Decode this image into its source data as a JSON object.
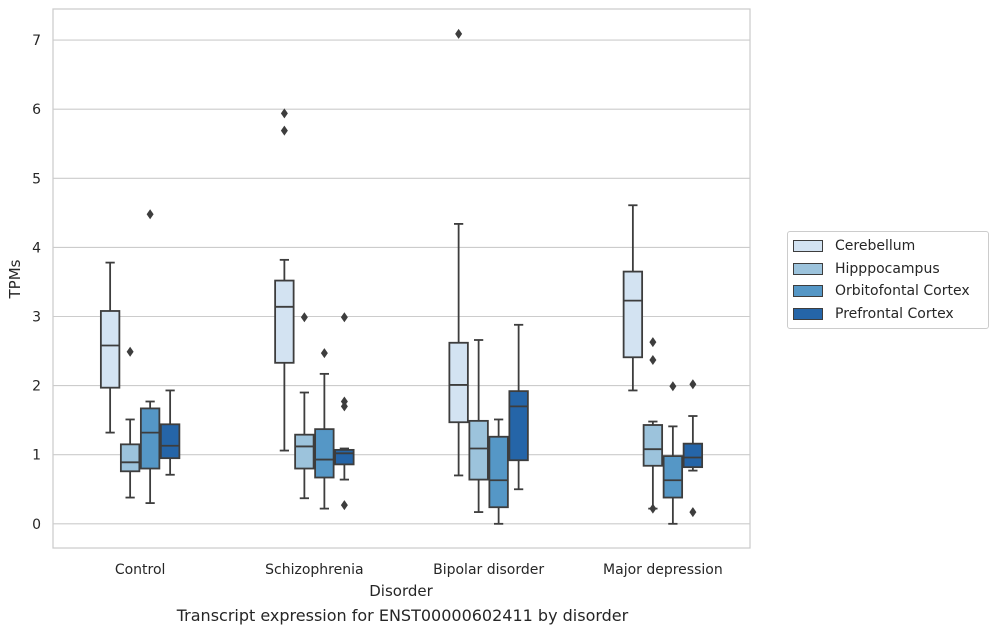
{
  "chart_data": {
    "type": "box",
    "title": "",
    "caption": "Transcript expression for ENST00000602411 by disorder",
    "xlabel": "Disorder",
    "ylabel": "TPMs",
    "ylim": [
      -0.35,
      7.45
    ],
    "yticks": [
      "0",
      "1",
      "2",
      "3",
      "4",
      "5",
      "6",
      "7"
    ],
    "categories": [
      "Control",
      "Schizophrenia",
      "Bipolar disorder",
      "Major depression"
    ],
    "grid": true,
    "legend_position": "right",
    "series": [
      {
        "name": "Cerebellum",
        "color": "#d3e3f2",
        "boxes": [
          {
            "whislo": 1.32,
            "q1": 1.97,
            "med": 2.58,
            "q3": 3.08,
            "whishi": 3.78,
            "fliers": []
          },
          {
            "whislo": 1.06,
            "q1": 2.33,
            "med": 3.14,
            "q3": 3.52,
            "whishi": 3.82,
            "fliers": [
              5.94,
              5.69
            ]
          },
          {
            "whislo": 0.7,
            "q1": 1.47,
            "med": 2.01,
            "q3": 2.62,
            "whishi": 4.34,
            "fliers": [
              7.09
            ]
          },
          {
            "whislo": 1.93,
            "q1": 2.41,
            "med": 3.23,
            "q3": 3.65,
            "whishi": 4.61,
            "fliers": []
          }
        ]
      },
      {
        "name": "Hipppocampus",
        "color": "#9cc3dc",
        "boxes": [
          {
            "whislo": 0.38,
            "q1": 0.76,
            "med": 0.89,
            "q3": 1.15,
            "whishi": 1.51,
            "fliers": [
              2.49
            ]
          },
          {
            "whislo": 0.37,
            "q1": 0.8,
            "med": 1.12,
            "q3": 1.29,
            "whishi": 1.9,
            "fliers": [
              2.99
            ]
          },
          {
            "whislo": 0.17,
            "q1": 0.64,
            "med": 1.09,
            "q3": 1.49,
            "whishi": 2.66,
            "fliers": []
          },
          {
            "whislo": 0.22,
            "q1": 0.84,
            "med": 1.08,
            "q3": 1.43,
            "whishi": 1.48,
            "fliers": [
              0.22,
              2.63,
              2.37
            ]
          }
        ]
      },
      {
        "name": "Orbitofontal Cortex",
        "color": "#5597c6",
        "boxes": [
          {
            "whislo": 0.3,
            "q1": 0.8,
            "med": 1.32,
            "q3": 1.67,
            "whishi": 1.77,
            "fliers": [
              4.48
            ]
          },
          {
            "whislo": 0.22,
            "q1": 0.67,
            "med": 0.93,
            "q3": 1.37,
            "whishi": 2.17,
            "fliers": [
              2.47
            ]
          },
          {
            "whislo": 0.0,
            "q1": 0.24,
            "med": 0.63,
            "q3": 1.26,
            "whishi": 1.51,
            "fliers": []
          },
          {
            "whislo": 0.0,
            "q1": 0.38,
            "med": 0.63,
            "q3": 0.98,
            "whishi": 1.41,
            "fliers": [
              1.99
            ]
          }
        ]
      },
      {
        "name": "Prefrontal Cortex",
        "color": "#2565a8",
        "boxes": [
          {
            "whislo": 0.71,
            "q1": 0.95,
            "med": 1.13,
            "q3": 1.44,
            "whishi": 1.93,
            "fliers": []
          },
          {
            "whislo": 0.64,
            "q1": 0.86,
            "med": 1.02,
            "q3": 1.07,
            "whishi": 1.09,
            "fliers": [
              2.99,
              1.77,
              1.7,
              0.27
            ]
          },
          {
            "whislo": 0.5,
            "q1": 0.92,
            "med": 1.7,
            "q3": 1.92,
            "whishi": 2.88,
            "fliers": []
          },
          {
            "whislo": 0.77,
            "q1": 0.82,
            "med": 0.96,
            "q3": 1.16,
            "whishi": 1.56,
            "fliers": [
              2.02,
              0.17
            ]
          }
        ]
      }
    ]
  }
}
